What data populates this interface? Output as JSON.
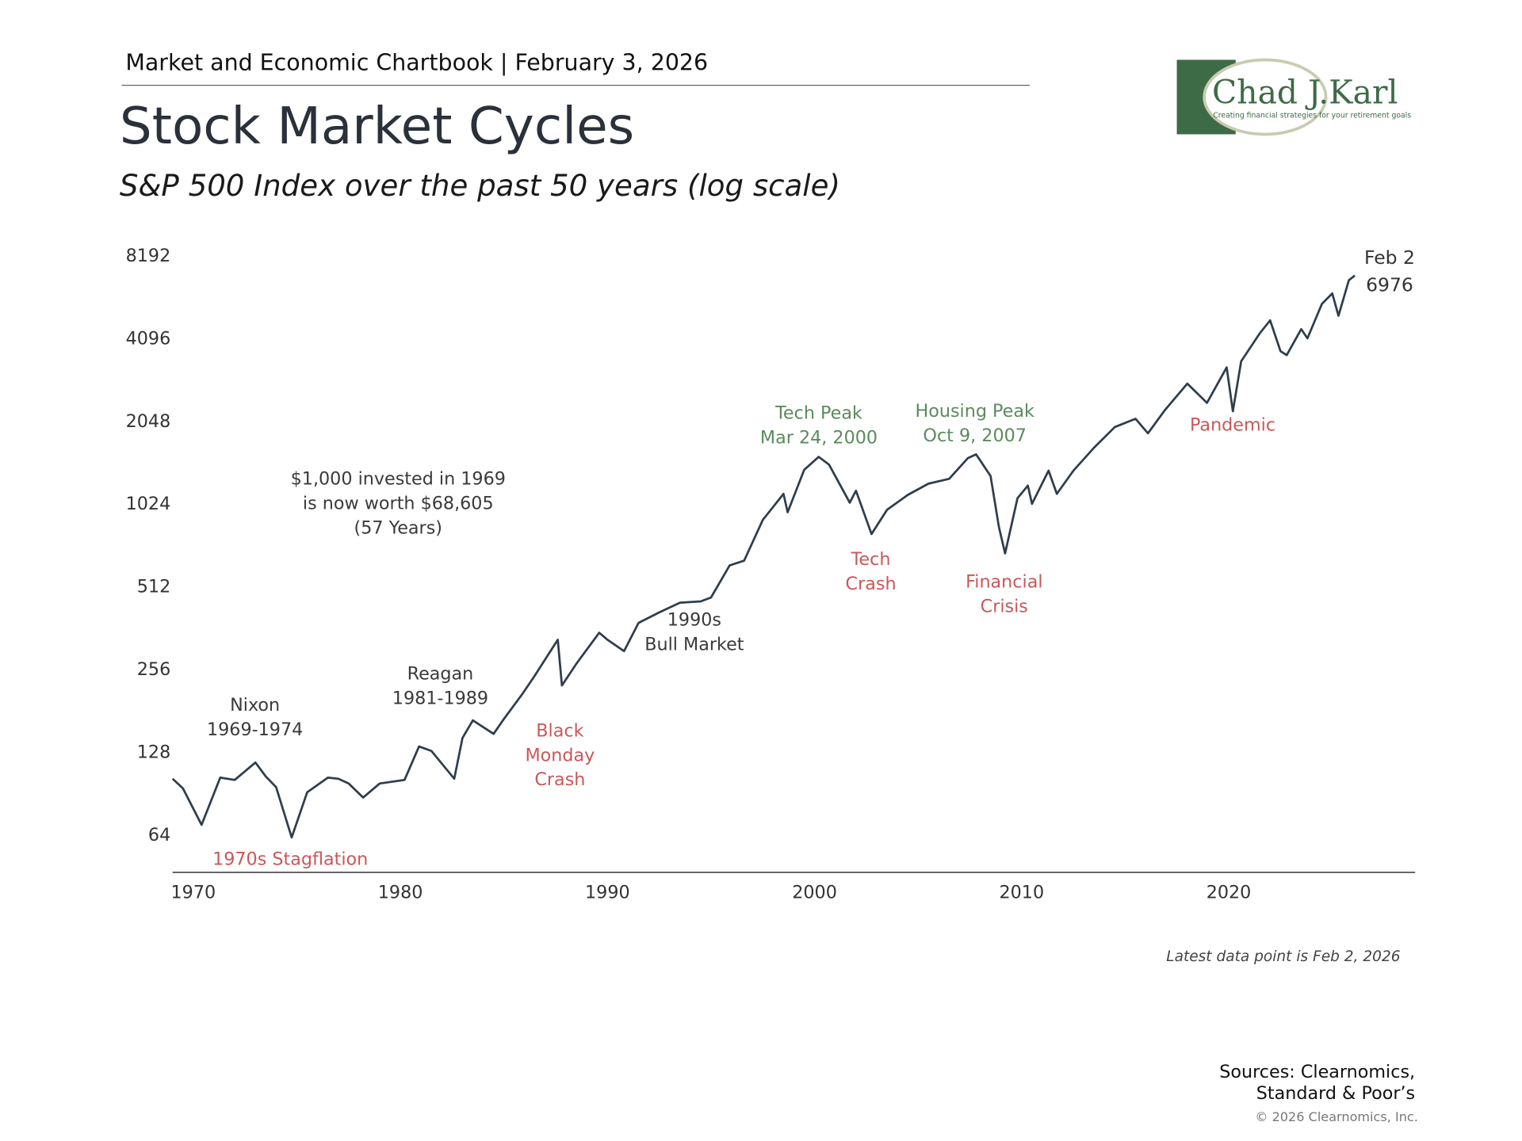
{
  "header": {
    "text": "Market and Economic Chartbook | February 3, 2026"
  },
  "logo": {
    "name": "Chad J.Karl",
    "tagline": "Creating financial strategies for your retirement goals"
  },
  "chart_data": {
    "type": "line",
    "title": "Stock Market Cycles",
    "subtitle": "S&P 500 Index over the past 50 years (log scale)",
    "log_scale": true,
    "grid": false,
    "xlim": [
      1969,
      2029
    ],
    "ylim": [
      47,
      9000
    ],
    "xticks": [
      1970,
      1980,
      1990,
      2000,
      2010,
      2020
    ],
    "yticks": [
      64,
      128,
      256,
      512,
      1024,
      2048,
      4096,
      8192
    ],
    "series": [
      {
        "color": "#2f3d4c",
        "x": [
          1969.0,
          1969.5,
          1970.4,
          1971.3,
          1972.0,
          1973.0,
          1973.5,
          1974.0,
          1974.75,
          1975.5,
          1976.5,
          1977.0,
          1977.5,
          1978.2,
          1979.0,
          1980.2,
          1980.9,
          1981.5,
          1982.6,
          1983.0,
          1983.5,
          1984.5,
          1985.0,
          1985.9,
          1986.5,
          1987.6,
          1987.8,
          1988.5,
          1989.6,
          1990.0,
          1990.8,
          1991.5,
          1992.5,
          1993.5,
          1994.5,
          1995.0,
          1995.9,
          1996.6,
          1997.5,
          1998.5,
          1998.7,
          1999.5,
          2000.2,
          2000.7,
          2001.7,
          2002.0,
          2002.75,
          2003.5,
          2004.5,
          2005.5,
          2006.5,
          2007.4,
          2007.8,
          2008.5,
          2008.9,
          2009.2,
          2009.8,
          2010.3,
          2010.5,
          2011.3,
          2011.7,
          2012.5,
          2013.5,
          2014.5,
          2015.5,
          2016.1,
          2016.9,
          2018.0,
          2018.95,
          2019.9,
          2020.2,
          2020.6,
          2021.5,
          2022.0,
          2022.5,
          2022.8,
          2023.5,
          2023.8,
          2024.5,
          2025.0,
          2025.3,
          2025.8,
          2026.09
        ],
        "values": [
          103,
          95,
          70,
          104,
          102,
          118,
          105,
          96,
          63,
          92,
          104,
          103,
          99,
          88,
          99,
          102,
          135,
          130,
          103,
          145,
          168,
          150,
          170,
          210,
          245,
          330,
          225,
          270,
          350,
          330,
          300,
          380,
          415,
          450,
          455,
          470,
          615,
          640,
          900,
          1120,
          960,
          1370,
          1527,
          1430,
          1040,
          1150,
          800,
          980,
          1110,
          1220,
          1270,
          1510,
          1560,
          1300,
          850,
          680,
          1080,
          1200,
          1030,
          1360,
          1120,
          1360,
          1650,
          1960,
          2100,
          1860,
          2250,
          2820,
          2400,
          3230,
          2237,
          3400,
          4300,
          4790,
          3700,
          3580,
          4450,
          4120,
          5500,
          6000,
          4980,
          6700,
          6976
        ]
      }
    ],
    "end_label": "Feb 2",
    "annotations": [
      {
        "lines": [
          "Nixon",
          "1969-1974"
        ],
        "color": "#3a3a3a"
      },
      {
        "lines": [
          "1970s Stagflation"
        ],
        "color": "#c9585a"
      },
      {
        "lines": [
          "$1,000 invested in 1969",
          "is now worth $68,605",
          "(57 Years)"
        ],
        "color": "#3a3a3a"
      },
      {
        "lines": [
          "Reagan",
          "1981-1989"
        ],
        "color": "#3a3a3a"
      },
      {
        "lines": [
          "Black",
          "Monday",
          "Crash"
        ],
        "color": "#c9585a"
      },
      {
        "lines": [
          "1990s",
          "Bull Market"
        ],
        "color": "#3a3a3a"
      },
      {
        "lines": [
          "Tech Peak",
          "Mar 24, 2000"
        ],
        "color": "#5b8a5d"
      },
      {
        "lines": [
          "Tech",
          "Crash"
        ],
        "color": "#c9585a"
      },
      {
        "lines": [
          "Housing Peak",
          "Oct 9, 2007"
        ],
        "color": "#5b8a5d"
      },
      {
        "lines": [
          "Financial",
          "Crisis"
        ],
        "color": "#c9585a"
      },
      {
        "lines": [
          "Pandemic"
        ],
        "color": "#c9585a"
      }
    ],
    "note": "Latest data point is Feb 2, 2026"
  },
  "footer": {
    "sources": [
      "Sources: Clearnomics,",
      "Standard & Poor’s"
    ],
    "copyright": "© 2026 Clearnomics, Inc."
  }
}
